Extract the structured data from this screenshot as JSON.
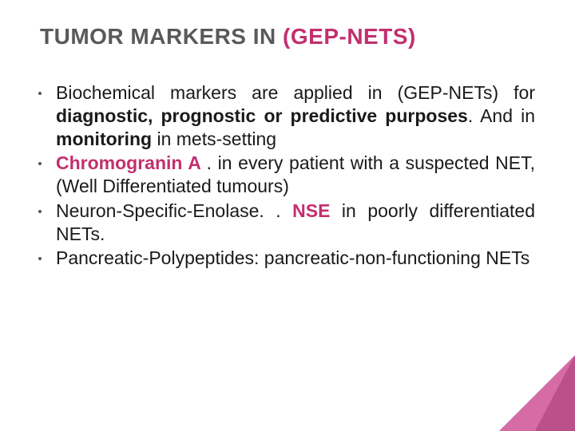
{
  "title": {
    "prefix": "TUMOR MARKERS IN ",
    "suffix": "(GEP-NETS)"
  },
  "bullets": [
    {
      "leadBold": "",
      "leadColor": "",
      "pre": "Biochemical markers are applied in  (GEP-NETs) for ",
      "boldMid": "diagnostic, prognostic or predictive purposes",
      "post1": ". And in ",
      "boldMid2": "monitoring",
      "post2": " in mets-setting"
    },
    {
      "leadBold": "Chromogranin A ",
      "leadColor": "pink",
      "pre": ". in every patient with a suspected NET, (Well Differentiated tumours)",
      "boldMid": "",
      "post1": "",
      "boldMid2": "",
      "post2": ""
    },
    {
      "leadBold": "",
      "leadColor": "",
      "pre": "Neuron-Specific-Enolase. . ",
      "mid0": "",
      "nse": "NSE",
      "post1": " in poorly differentiated NETs.",
      "boldMid": "",
      "boldMid2": "",
      "post2": ""
    },
    {
      "leadBold": "",
      "leadColor": "",
      "pre": "Pancreatic-Polypeptides: pancreatic-non-functioning NETs",
      "boldMid": "",
      "post1": "",
      "boldMid2": "",
      "post2": ""
    }
  ],
  "colors": {
    "titleGray": "#595959",
    "accentPink": "#c22f6f",
    "bodyText": "#1a1a1a",
    "cornerPink": "#c73b88"
  },
  "typography": {
    "titleFontSize": 28,
    "bodyFontSize": 23,
    "titleWeight": 900
  }
}
